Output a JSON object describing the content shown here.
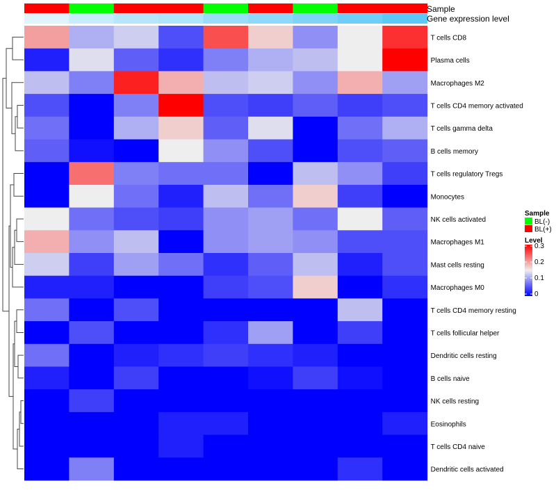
{
  "chart_data": {
    "type": "heatmap",
    "annotation_labels": [
      "Sample",
      "Gene expression level"
    ],
    "sample_groups": [
      "BL(+)",
      "BL(-)",
      "BL(+)",
      "BL(+)",
      "BL(-)",
      "BL(+)",
      "BL(-)",
      "BL(+)",
      "BL(+)"
    ],
    "expression_levels": [
      0.2,
      0.35,
      0.45,
      0.5,
      0.62,
      0.7,
      0.8,
      0.9,
      1.0
    ],
    "rows": [
      "T cells CD8",
      "Plasma cells",
      "Macrophages M2",
      "T cells CD4 memory activated",
      "T cells gamma delta",
      "B cells memory",
      "T cells regulatory  Tregs",
      "Monocytes",
      "NK cells activated",
      "Macrophages M1",
      "Mast cells resting",
      "Macrophages M0",
      "T cells CD4 memory resting",
      "T cells follicular helper",
      "Dendritic cells resting",
      "B cells naive",
      "NK cells resting",
      "Eosinophils",
      "T cells CD4 naive",
      "Dendritic cells activated"
    ],
    "values": [
      [
        0.2,
        0.11,
        0.13,
        0.05,
        0.25,
        0.17,
        0.09,
        0.15,
        0.27
      ],
      [
        0.02,
        0.14,
        0.06,
        0.03,
        0.08,
        0.11,
        0.12,
        0.15,
        0.3
      ],
      [
        0.12,
        0.08,
        0.28,
        0.19,
        0.12,
        0.13,
        0.09,
        0.19,
        0.1
      ],
      [
        0.05,
        0.0,
        0.08,
        0.3,
        0.05,
        0.04,
        0.06,
        0.04,
        0.05
      ],
      [
        0.07,
        0.0,
        0.11,
        0.17,
        0.06,
        0.14,
        0.0,
        0.07,
        0.11
      ],
      [
        0.06,
        0.01,
        0.0,
        0.15,
        0.09,
        0.05,
        0.0,
        0.05,
        0.06
      ],
      [
        0.0,
        0.23,
        0.08,
        0.07,
        0.07,
        0.0,
        0.12,
        0.09,
        0.04
      ],
      [
        0.0,
        0.15,
        0.07,
        0.02,
        0.12,
        0.07,
        0.17,
        0.04,
        0.0
      ],
      [
        0.15,
        0.07,
        0.05,
        0.04,
        0.09,
        0.1,
        0.07,
        0.15,
        0.06
      ],
      [
        0.19,
        0.09,
        0.12,
        0.0,
        0.09,
        0.1,
        0.09,
        0.05,
        0.05
      ],
      [
        0.13,
        0.04,
        0.1,
        0.07,
        0.03,
        0.06,
        0.12,
        0.02,
        0.05
      ],
      [
        0.02,
        0.02,
        0.0,
        0.0,
        0.04,
        0.05,
        0.17,
        0.0,
        0.03
      ],
      [
        0.07,
        0.0,
        0.05,
        0.0,
        0.0,
        0.0,
        0.0,
        0.12,
        0.0
      ],
      [
        0.0,
        0.05,
        0.0,
        0.0,
        0.03,
        0.1,
        0.0,
        0.04,
        0.0
      ],
      [
        0.07,
        0.0,
        0.02,
        0.03,
        0.04,
        0.03,
        0.02,
        0.0,
        0.0
      ],
      [
        0.02,
        0.0,
        0.04,
        0.0,
        0.0,
        0.01,
        0.04,
        0.01,
        0.0
      ],
      [
        0.0,
        0.04,
        0.0,
        0.0,
        0.0,
        0.0,
        0.0,
        0.0,
        0.0
      ],
      [
        0.0,
        0.0,
        0.0,
        0.02,
        0.02,
        0.0,
        0.0,
        0.0,
        0.02
      ],
      [
        0.0,
        0.0,
        0.0,
        0.02,
        0.0,
        0.0,
        0.0,
        0.0,
        0.0
      ],
      [
        0.0,
        0.08,
        0.0,
        0.0,
        0.0,
        0.0,
        0.0,
        0.03,
        0.0
      ]
    ],
    "row_dendrogram_order_note": "",
    "colorscale": {
      "low": "#0000ff",
      "mid": "#eeeeee",
      "high": "#ff0000",
      "min": 0,
      "mid_value": 0.15,
      "max": 0.3
    },
    "legend": {
      "sample_title": "Sample",
      "sample_entries": [
        {
          "label": "BL(-)",
          "color": "#00ff00"
        },
        {
          "label": "BL(+)",
          "color": "#ff0000"
        }
      ],
      "level_title": "Level",
      "level_ticks": [
        "0.3",
        "0.2",
        "0.1",
        "0"
      ],
      "placement": "right"
    },
    "group_colors": {
      "BL(-)": "#00ff00",
      "BL(+)": "#ff0000"
    },
    "expression_color_low": "#ffffff",
    "expression_color_high": "#5ec8f6"
  }
}
